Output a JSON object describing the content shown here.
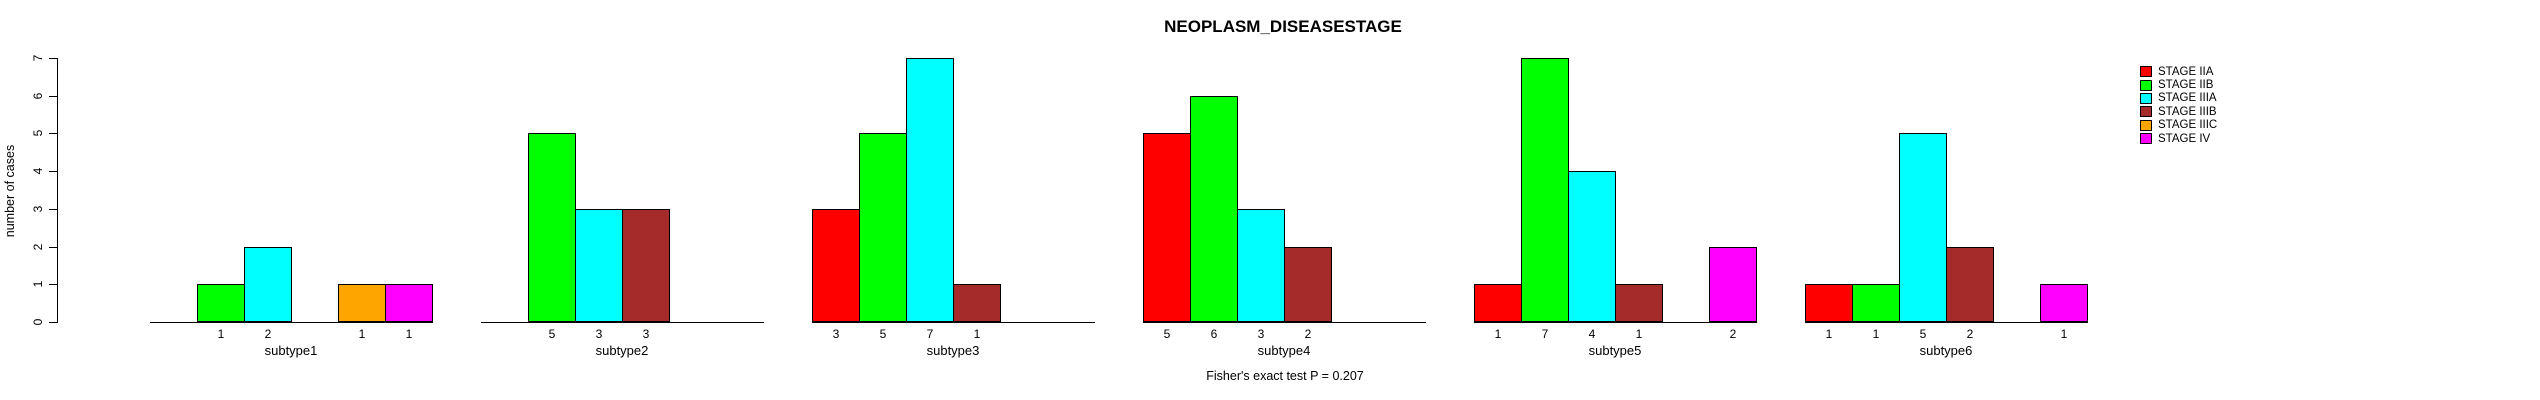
{
  "chart": {
    "title": "NEOPLASM_DISEASESTAGE",
    "y_axis_label": "number of cases",
    "annotation": "Fisher's exact test P = 0.207"
  },
  "legend": {
    "entries": [
      {
        "label": "STAGE IIA",
        "color": "#FF0000"
      },
      {
        "label": "STAGE IIB",
        "color": "#00FF00"
      },
      {
        "label": "STAGE IIIA",
        "color": "#00FFFF"
      },
      {
        "label": "STAGE IIIB",
        "color": "#A52A2A"
      },
      {
        "label": "STAGE IIIC",
        "color": "#FFA500"
      },
      {
        "label": "STAGE IV",
        "color": "#FF00FF"
      }
    ]
  },
  "chart_data": {
    "type": "bar",
    "title": "NEOPLASM_DISEASESTAGE",
    "xlabel": "",
    "ylabel": "number of cases",
    "ylim": [
      0,
      7
    ],
    "y_ticks": [
      0,
      1,
      2,
      3,
      4,
      5,
      6,
      7
    ],
    "grid": false,
    "legend_position": "right",
    "bar_value_labels": "shown under each non-zero bar",
    "annotation": "Fisher's exact test P = 0.207",
    "categories": [
      "subtype1",
      "subtype2",
      "subtype3",
      "subtype4",
      "subtype5",
      "subtype6"
    ],
    "series": [
      {
        "name": "STAGE IIA",
        "color": "#FF0000",
        "values": [
          0,
          0,
          3,
          5,
          1,
          1
        ]
      },
      {
        "name": "STAGE IIB",
        "color": "#00FF00",
        "values": [
          1,
          5,
          5,
          6,
          7,
          1
        ]
      },
      {
        "name": "STAGE IIIA",
        "color": "#00FFFF",
        "values": [
          2,
          3,
          7,
          3,
          4,
          5
        ]
      },
      {
        "name": "STAGE IIIB",
        "color": "#A52A2A",
        "values": [
          0,
          3,
          1,
          2,
          1,
          2
        ]
      },
      {
        "name": "STAGE IIIC",
        "color": "#FFA500",
        "values": [
          1,
          0,
          0,
          0,
          0,
          0
        ]
      },
      {
        "name": "STAGE IV",
        "color": "#FF00FF",
        "values": [
          1,
          0,
          0,
          0,
          2,
          1
        ]
      }
    ]
  }
}
